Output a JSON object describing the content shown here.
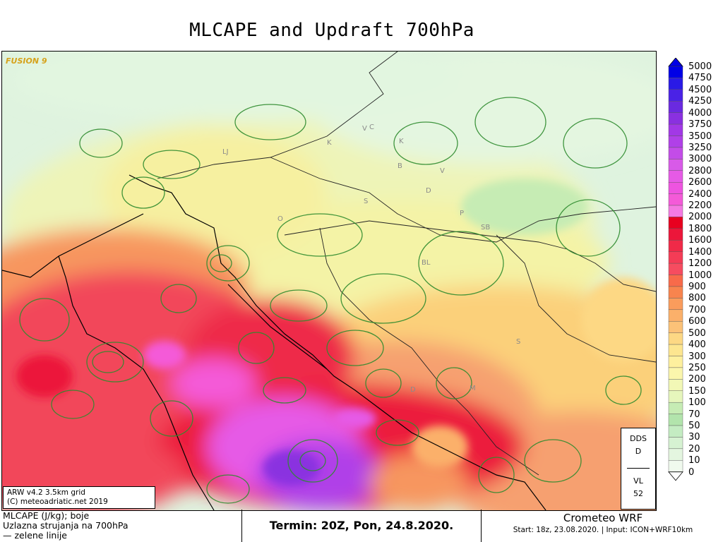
{
  "title": "MLCAPE and Updraft 700hPa",
  "logo_text": "FUSION 9",
  "info_box": {
    "line1": "ARW v4.2  3.5km grid",
    "line2": "(C) meteoadriatic.net 2019"
  },
  "dds_box": {
    "top1": "DDS",
    "top2": "D",
    "bottom1": "VL",
    "bottom2": "52"
  },
  "legend": {
    "levels": [
      "5000",
      "4750",
      "4500",
      "4250",
      "4000",
      "3750",
      "3500",
      "3250",
      "3000",
      "2800",
      "2600",
      "2400",
      "2200",
      "2000",
      "1800",
      "1600",
      "1400",
      "1200",
      "1000",
      "900",
      "800",
      "700",
      "600",
      "500",
      "400",
      "300",
      "250",
      "200",
      "150",
      "100",
      "70",
      "50",
      "30",
      "20",
      "10",
      "0"
    ],
    "colors": [
      "#0000e6",
      "#2a1ae6",
      "#4a22e6",
      "#6a2ae0",
      "#8a30e0",
      "#a238e6",
      "#b040e8",
      "#c34ce8",
      "#d85ae8",
      "#e65ae6",
      "#ee54e0",
      "#f45ad8",
      "#f47ae2",
      "#e8001f",
      "#ec163a",
      "#f02a48",
      "#f43c56",
      "#f64c60",
      "#f86a4a",
      "#f8844e",
      "#fa9c5c",
      "#fbb06a",
      "#fcc278",
      "#fdd884",
      "#fde690",
      "#fef09e",
      "#fbf6ac",
      "#f2f8b6",
      "#e6f6bc",
      "#c6ecb4",
      "#b2e4ac",
      "#c4ecc2",
      "#d6f2d2",
      "#e4f6e0",
      "#f0faee",
      "#ffffff"
    ]
  },
  "map_labels": [
    "LJ",
    "K",
    "V",
    "C",
    "K",
    "B",
    "V",
    "D",
    "S",
    "P",
    "SB",
    "BL",
    "S",
    "M",
    "D",
    "O"
  ],
  "footer": {
    "left_line1": "MLCAPE (J/kg); boje",
    "left_line2": "Uzlazna strujanja na 700hPa",
    "left_line3": "— zelene linije",
    "mid": "Termin: 20Z, Pon, 24.8.2020.",
    "right_title": "Crometeo WRF",
    "right_sub": "Start: 18z, 23.08.2020. | Input: ICON+WRF10km"
  }
}
